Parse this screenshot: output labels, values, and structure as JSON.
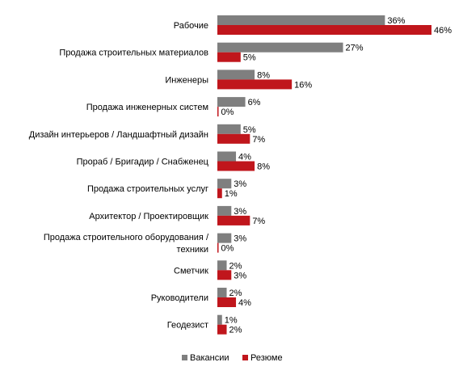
{
  "chart_data": {
    "type": "bar",
    "orientation": "horizontal",
    "title": "",
    "xlabel": "",
    "ylabel": "",
    "xlim": [
      0,
      46
    ],
    "grid": false,
    "legend_position": "bottom",
    "value_suffix": "%",
    "categories": [
      "Рабочие",
      "Продажа строительных материалов",
      "Инженеры",
      "Продажа инженерных систем",
      "Дизайн интерьеров  / Ландшафтный дизайн",
      "Прораб / Бригадир / Снабженец",
      "Продажа строительных услуг",
      "Архитектор  / Проектировщик",
      [
        "Продажа строительного оборудования  /",
        "техники"
      ],
      "Сметчик",
      "Руководители",
      "Геодезист"
    ],
    "series": [
      {
        "name": "Вакансии",
        "color": "#7f7f7f",
        "values": [
          36,
          27,
          8,
          6,
          5,
          4,
          3,
          3,
          3,
          2,
          2,
          1
        ]
      },
      {
        "name": "Резюме",
        "color": "#c0161c",
        "values": [
          46,
          5,
          16,
          0,
          7,
          8,
          1,
          7,
          0,
          3,
          4,
          2
        ]
      }
    ]
  }
}
